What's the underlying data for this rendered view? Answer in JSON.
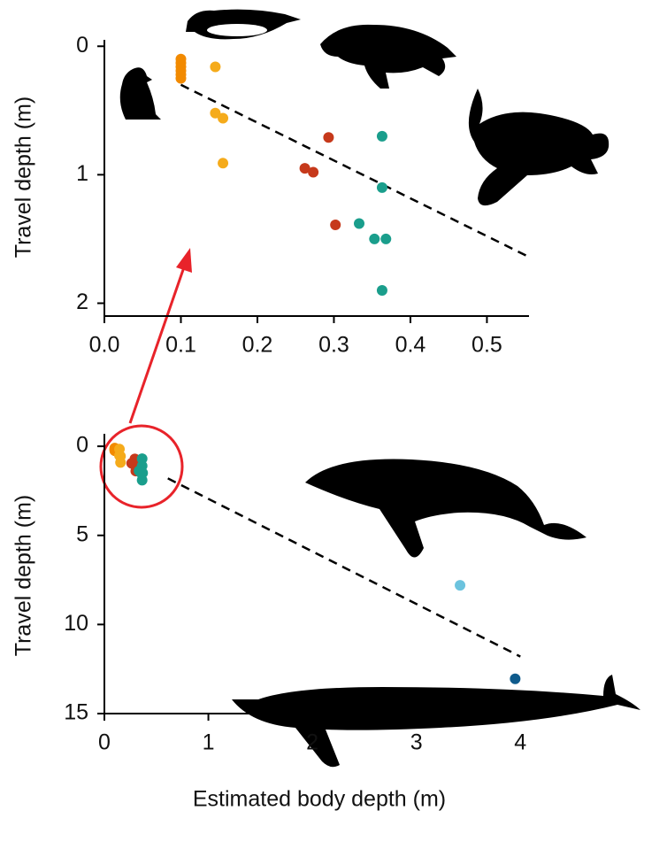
{
  "chart_data": [
    {
      "type": "scatter",
      "ylabel": "Travel depth (m)",
      "y_inverted": true,
      "xlim": [
        0,
        0.555
      ],
      "ylim": [
        -0.05,
        2.1
      ],
      "xticks": [
        {
          "value": 0,
          "label": "0.0"
        },
        0.1,
        0.2,
        0.3,
        0.4,
        0.5
      ],
      "yticks": [
        0,
        1,
        2
      ],
      "series": [
        {
          "color": "#f28a00",
          "x": [
            0.1,
            0.1,
            0.1,
            0.1,
            0.1,
            0.1
          ],
          "y": [
            0.1,
            0.13,
            0.16,
            0.19,
            0.22,
            0.25
          ]
        },
        {
          "color": "#f5ab1b",
          "x": [
            0.145,
            0.145,
            0.155,
            0.155
          ],
          "y": [
            0.16,
            0.52,
            0.56,
            0.91
          ]
        },
        {
          "color": "#c6391b",
          "x": [
            0.293,
            0.262,
            0.273,
            0.302
          ],
          "y": [
            0.71,
            0.95,
            0.98,
            1.39
          ]
        },
        {
          "color": "#1a9e8c",
          "x": [
            0.363,
            0.363,
            0.333,
            0.353,
            0.368,
            0.363
          ],
          "y": [
            0.7,
            1.1,
            1.38,
            1.5,
            1.5,
            1.9
          ]
        }
      ],
      "trendline": {
        "x": [
          0.1,
          0.555
        ],
        "y": [
          0.3,
          1.64
        ]
      }
    },
    {
      "type": "scatter",
      "ylabel": "Travel depth (m)",
      "xlabel": "Estimated body depth (m)",
      "y_inverted": true,
      "xlim": [
        0,
        4.1
      ],
      "ylim": [
        -0.7,
        15
      ],
      "xticks": [
        0,
        1,
        2,
        3,
        4
      ],
      "yticks": [
        0,
        5,
        10,
        15
      ],
      "series": [
        {
          "color": "#f28a00",
          "x": [
            0.1,
            0.1,
            0.1,
            0.1,
            0.1,
            0.1
          ],
          "y": [
            0.1,
            0.13,
            0.16,
            0.19,
            0.22,
            0.25
          ]
        },
        {
          "color": "#f5ab1b",
          "x": [
            0.145,
            0.145,
            0.155,
            0.155
          ],
          "y": [
            0.16,
            0.52,
            0.56,
            0.91
          ]
        },
        {
          "color": "#c6391b",
          "x": [
            0.293,
            0.262,
            0.273,
            0.302
          ],
          "y": [
            0.71,
            0.95,
            0.98,
            1.39
          ]
        },
        {
          "color": "#1a9e8c",
          "x": [
            0.363,
            0.363,
            0.333,
            0.353,
            0.368,
            0.363
          ],
          "y": [
            0.7,
            1.1,
            1.38,
            1.5,
            1.5,
            1.9
          ]
        },
        {
          "color": "#6cc3de",
          "x": [
            3.42
          ],
          "y": [
            7.8
          ]
        },
        {
          "color": "#0f5b8c",
          "x": [
            3.95
          ],
          "y": [
            13.05
          ]
        }
      ],
      "trendline": {
        "x": [
          0.61,
          4.0
        ],
        "y": [
          1.8,
          11.8
        ]
      }
    }
  ]
}
